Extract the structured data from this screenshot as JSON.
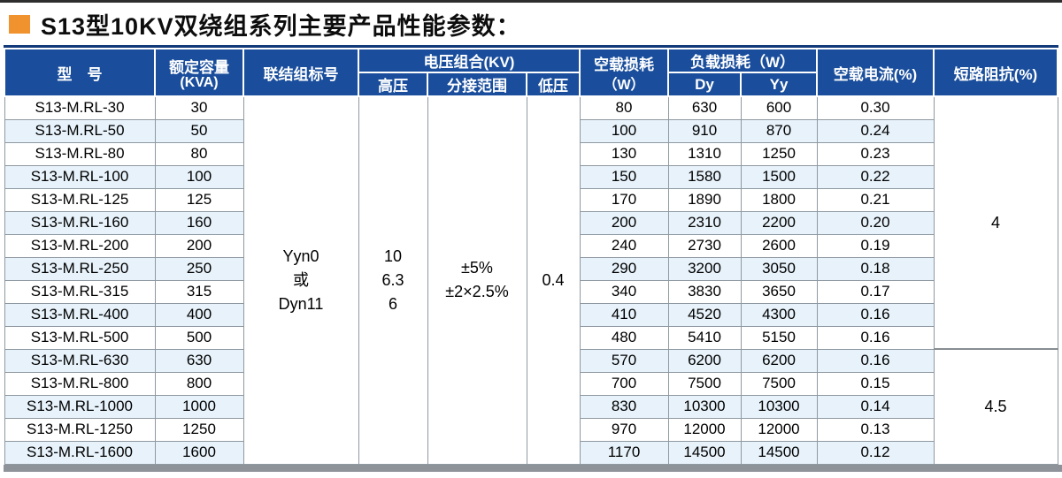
{
  "title": "S13型10KV双绕组系列主要产品性能参数：",
  "colors": {
    "header_bg": "#1a4e9c",
    "row_stripe": "#e7f2fa",
    "accent_orange": "#f0922d",
    "top_rule": "#2e2e2e",
    "bottom_bar": "#8e9399"
  },
  "table": {
    "headers": {
      "model": "型　号",
      "capacity_line1": "额定容量",
      "capacity_line2": "(KVA)",
      "connection": "联结组标号",
      "voltage_group": "电压组合(KV)",
      "hv": "高压",
      "tap_range": "分接范围",
      "lv": "低压",
      "no_load_loss_line1": "空载损耗",
      "no_load_loss_line2": "（W）",
      "load_loss": "负载损耗（W）",
      "dy": "Dy",
      "yy": "Yy",
      "no_load_current": "空载电流(%)",
      "impedance": "短路阻抗(%)"
    },
    "merged": {
      "connection_lines": [
        "Yyn0",
        "或",
        "Dyn11"
      ],
      "hv_lines": [
        "10",
        "6.3",
        "6"
      ],
      "tap_lines": [
        "±5%",
        "±2×2.5%"
      ],
      "lv": "0.4",
      "impedance_groups": [
        {
          "value": "4",
          "row_span": 11
        },
        {
          "value": "4.5",
          "row_span": 5
        }
      ]
    },
    "rows": [
      {
        "model": "S13-M.RL-30",
        "capacity": "30",
        "no_load_loss": "80",
        "dy": "630",
        "yy": "600",
        "no_load_current": "0.30"
      },
      {
        "model": "S13-M.RL-50",
        "capacity": "50",
        "no_load_loss": "100",
        "dy": "910",
        "yy": "870",
        "no_load_current": "0.24"
      },
      {
        "model": "S13-M.RL-80",
        "capacity": "80",
        "no_load_loss": "130",
        "dy": "1310",
        "yy": "1250",
        "no_load_current": "0.23"
      },
      {
        "model": "S13-M.RL-100",
        "capacity": "100",
        "no_load_loss": "150",
        "dy": "1580",
        "yy": "1500",
        "no_load_current": "0.22"
      },
      {
        "model": "S13-M.RL-125",
        "capacity": "125",
        "no_load_loss": "170",
        "dy": "1890",
        "yy": "1800",
        "no_load_current": "0.21"
      },
      {
        "model": "S13-M.RL-160",
        "capacity": "160",
        "no_load_loss": "200",
        "dy": "2310",
        "yy": "2200",
        "no_load_current": "0.20"
      },
      {
        "model": "S13-M.RL-200",
        "capacity": "200",
        "no_load_loss": "240",
        "dy": "2730",
        "yy": "2600",
        "no_load_current": "0.19"
      },
      {
        "model": "S13-M.RL-250",
        "capacity": "250",
        "no_load_loss": "290",
        "dy": "3200",
        "yy": "3050",
        "no_load_current": "0.18"
      },
      {
        "model": "S13-M.RL-315",
        "capacity": "315",
        "no_load_loss": "340",
        "dy": "3830",
        "yy": "3650",
        "no_load_current": "0.17"
      },
      {
        "model": "S13-M.RL-400",
        "capacity": "400",
        "no_load_loss": "410",
        "dy": "4520",
        "yy": "4300",
        "no_load_current": "0.16"
      },
      {
        "model": "S13-M.RL-500",
        "capacity": "500",
        "no_load_loss": "480",
        "dy": "5410",
        "yy": "5150",
        "no_load_current": "0.16"
      },
      {
        "model": "S13-M.RL-630",
        "capacity": "630",
        "no_load_loss": "570",
        "dy": "6200",
        "yy": "6200",
        "no_load_current": "0.16"
      },
      {
        "model": "S13-M.RL-800",
        "capacity": "800",
        "no_load_loss": "700",
        "dy": "7500",
        "yy": "7500",
        "no_load_current": "0.15"
      },
      {
        "model": "S13-M.RL-1000",
        "capacity": "1000",
        "no_load_loss": "830",
        "dy": "10300",
        "yy": "10300",
        "no_load_current": "0.14"
      },
      {
        "model": "S13-M.RL-1250",
        "capacity": "1250",
        "no_load_loss": "970",
        "dy": "12000",
        "yy": "12000",
        "no_load_current": "0.13"
      },
      {
        "model": "S13-M.RL-1600",
        "capacity": "1600",
        "no_load_loss": "1170",
        "dy": "14500",
        "yy": "14500",
        "no_load_current": "0.12"
      }
    ]
  }
}
